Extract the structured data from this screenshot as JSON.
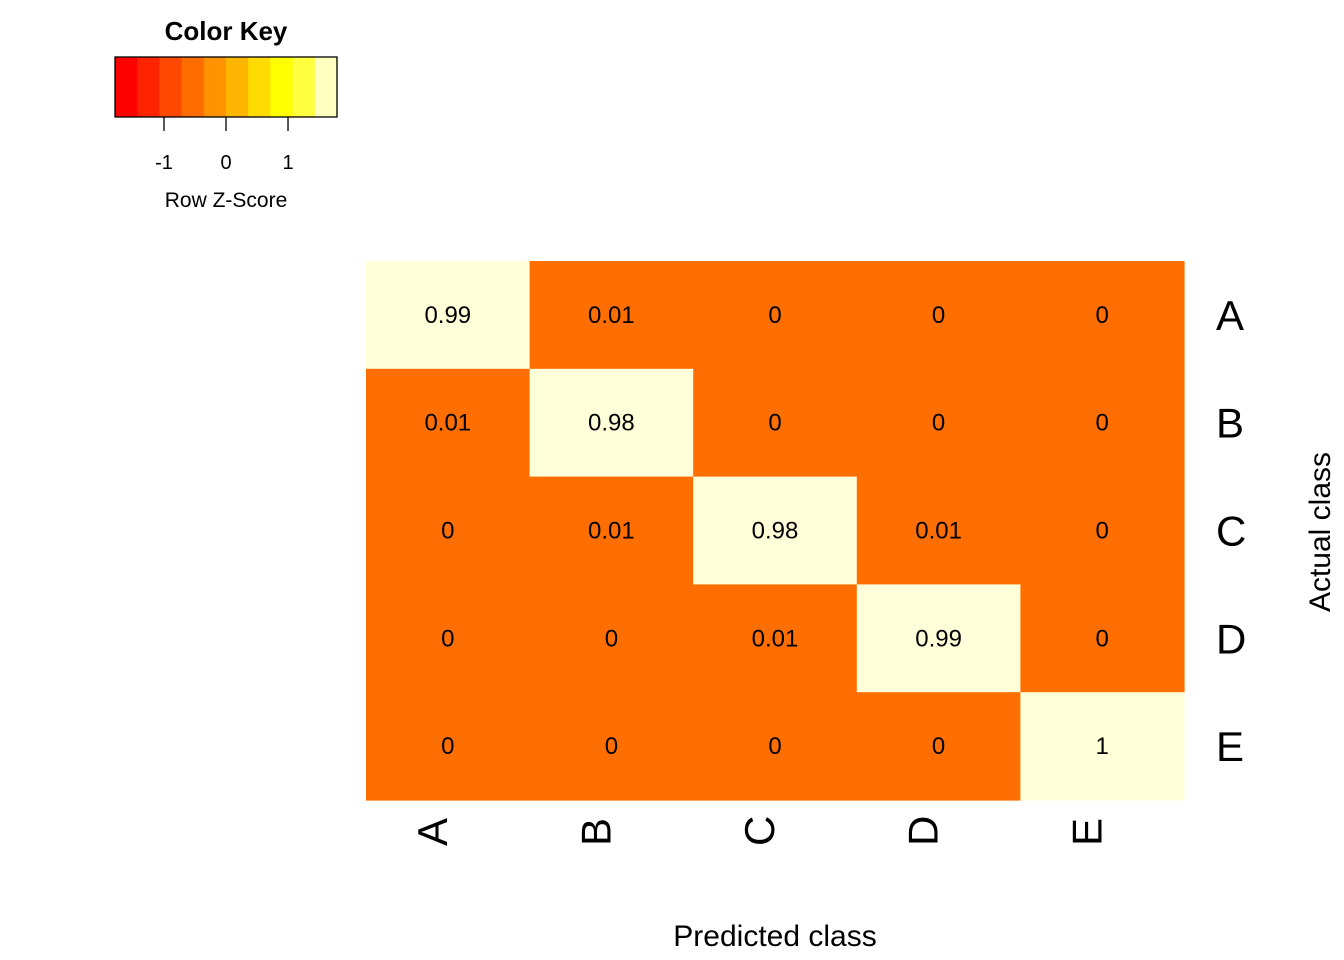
{
  "chart_data": {
    "type": "heatmap",
    "title": "",
    "xlabel": "Predicted class",
    "ylabel": "Actual class",
    "x_categories": [
      "A",
      "B",
      "C",
      "D",
      "E"
    ],
    "y_categories": [
      "A",
      "B",
      "C",
      "D",
      "E"
    ],
    "values": [
      [
        0.99,
        0.01,
        0,
        0,
        0
      ],
      [
        0.01,
        0.98,
        0,
        0,
        0
      ],
      [
        0,
        0.01,
        0.98,
        0.01,
        0
      ],
      [
        0,
        0,
        0.01,
        0.99,
        0
      ],
      [
        0,
        0,
        0,
        0,
        1
      ]
    ],
    "color_key": {
      "title": "Color Key",
      "label": "Row Z-Score",
      "ticks": [
        "-1",
        "0",
        "1"
      ],
      "tick_values": [
        -1,
        0,
        1
      ],
      "range": [
        -1.79,
        1.79
      ],
      "colors": [
        "#ff0000",
        "#ff2400",
        "#ff4900",
        "#ff6d00",
        "#ff9200",
        "#ffb600",
        "#ffdb00",
        "#ffff00",
        "#ffff40",
        "#ffffbf"
      ]
    },
    "cell_colors": {
      "high": "#ffffd9",
      "low": "#ff6e00"
    },
    "grid": false
  }
}
